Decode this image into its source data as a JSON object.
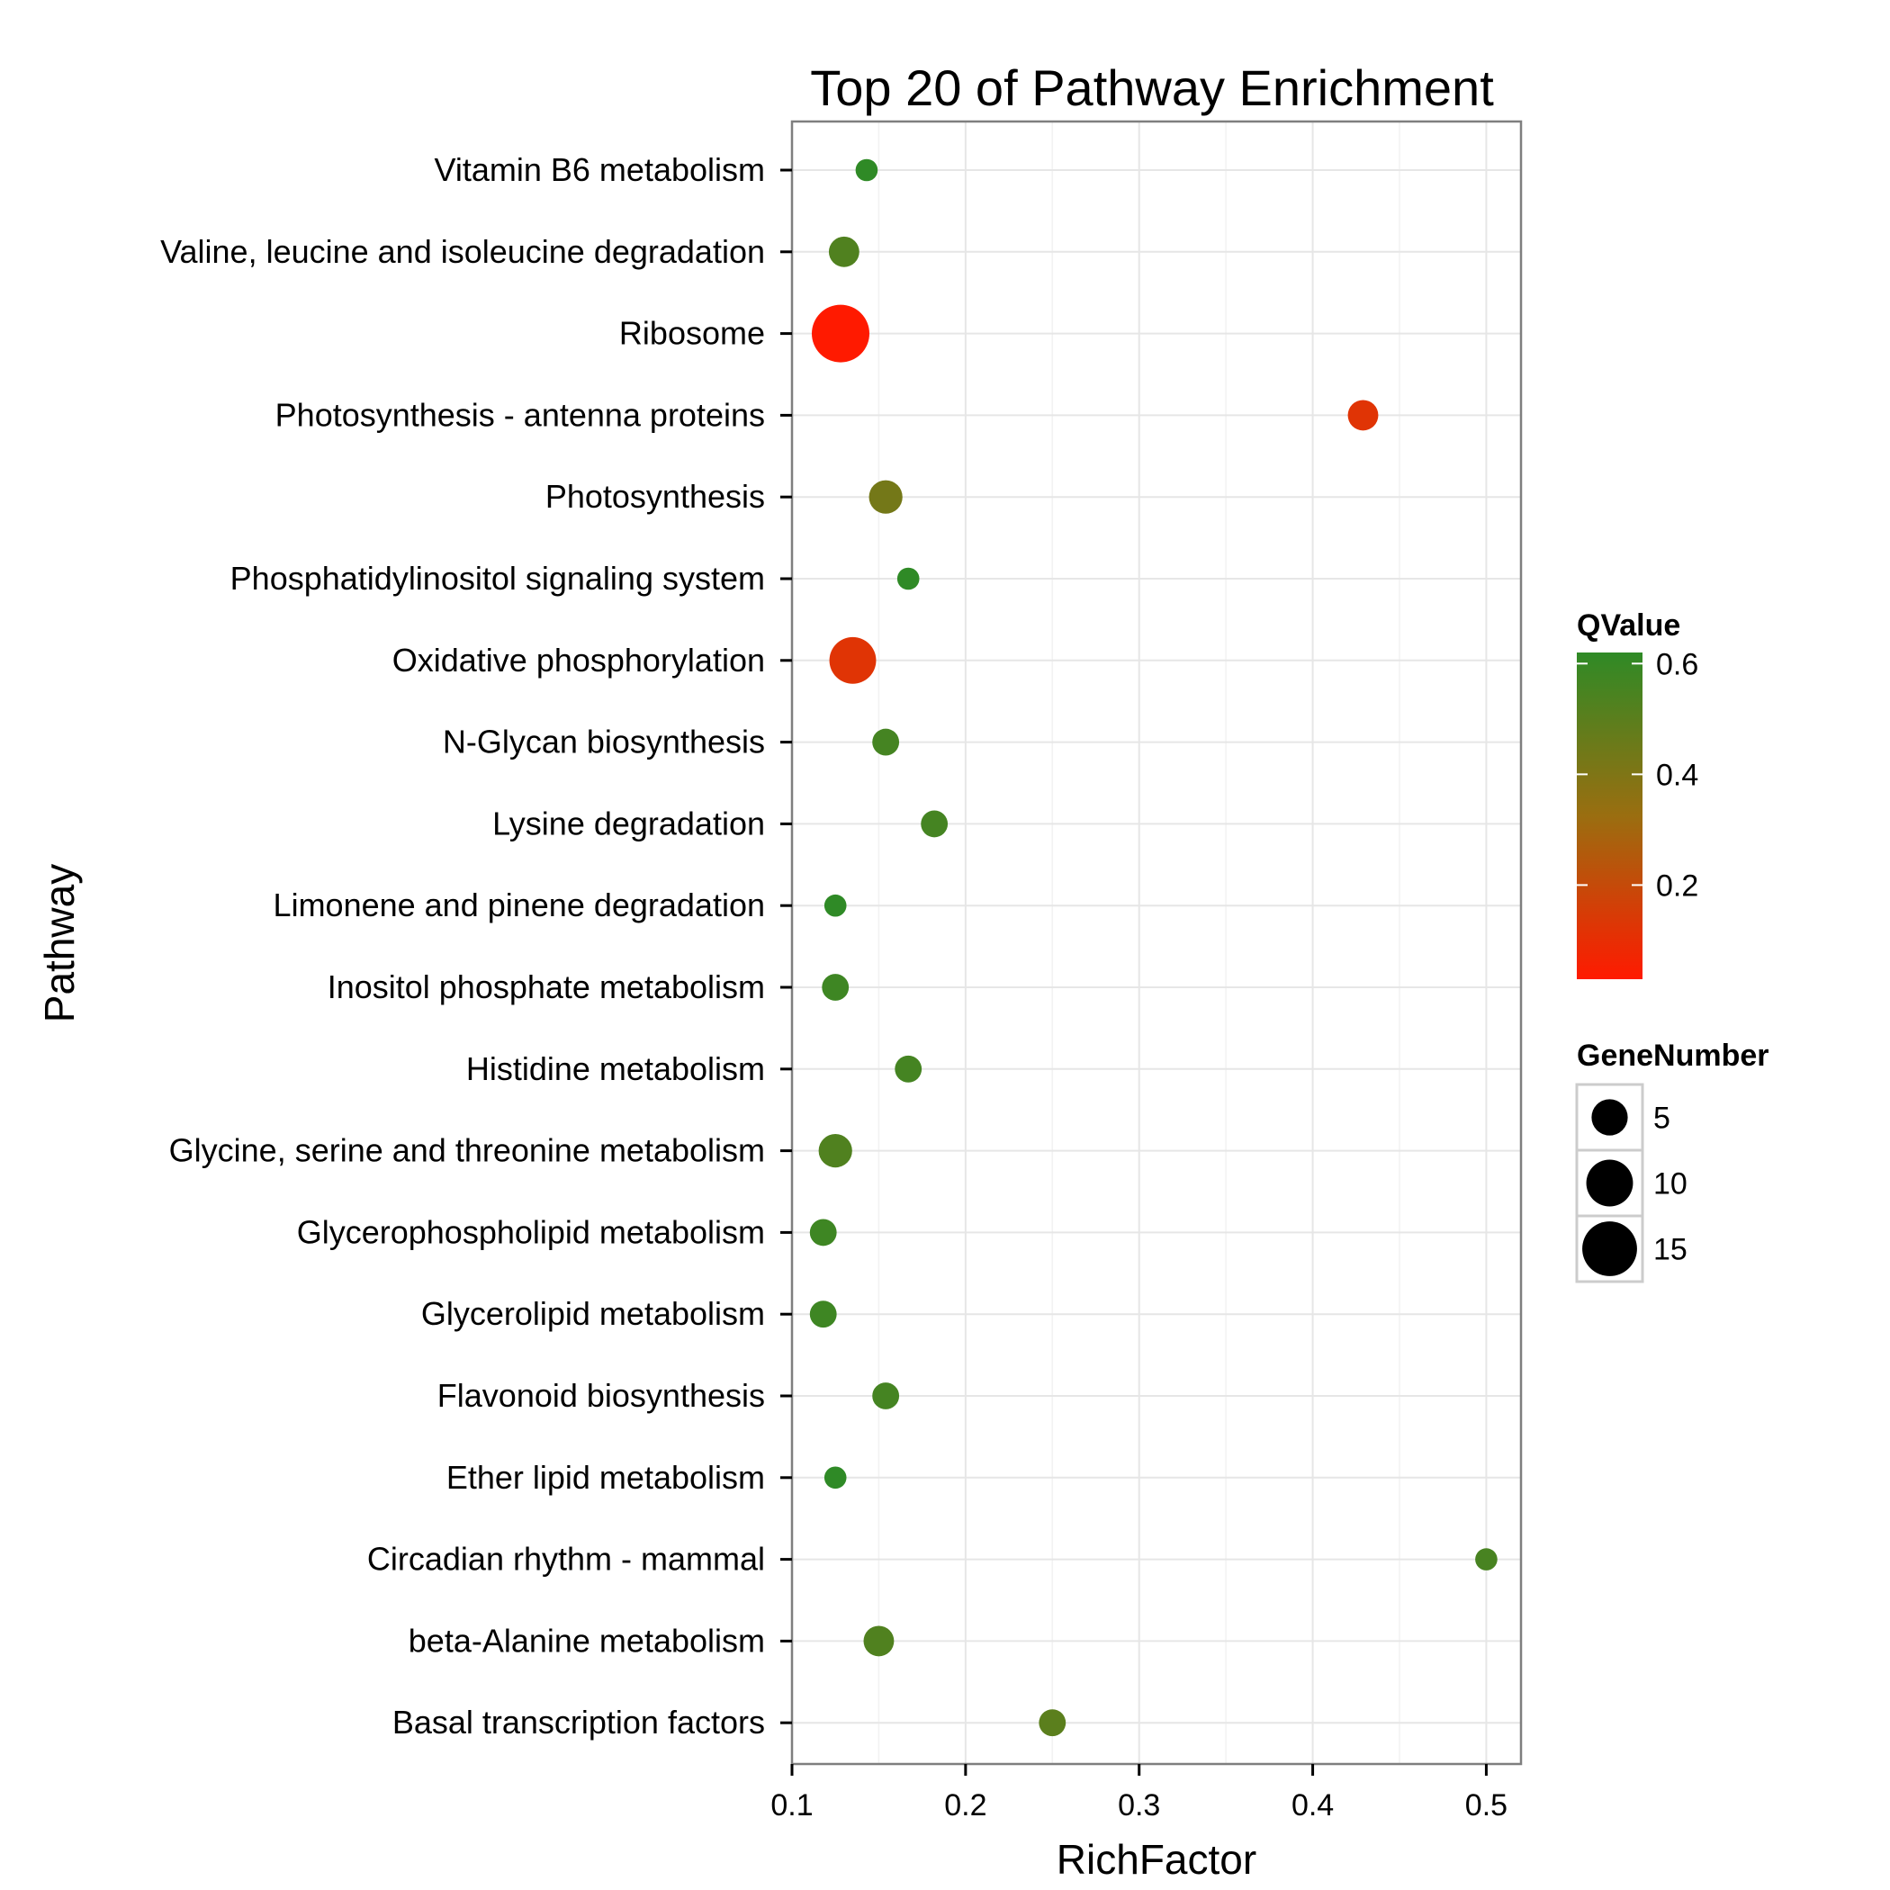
{
  "chart_data": {
    "type": "scatter",
    "title": "Top 20 of Pathway Enrichment",
    "xlabel": "RichFactor",
    "ylabel": "Pathway",
    "xlim": [
      0.1,
      0.52
    ],
    "xticks": [
      0.1,
      0.2,
      0.3,
      0.4,
      0.5
    ],
    "xtick_labels": [
      "0.1",
      "0.2",
      "0.3",
      "0.4",
      "0.5"
    ],
    "grid": true,
    "legend_position": "right",
    "points": [
      {
        "pathway": "Vitamin B6 metabolism",
        "rich_factor": 0.143,
        "gene_number": 1,
        "qvalue": 0.62
      },
      {
        "pathway": "Valine, leucine and isoleucine degradation",
        "rich_factor": 0.13,
        "gene_number": 3,
        "qvalue": 0.53
      },
      {
        "pathway": "Ribosome",
        "rich_factor": 0.128,
        "gene_number": 17,
        "qvalue": 0.03
      },
      {
        "pathway": "Photosynthesis - antenna proteins",
        "rich_factor": 0.429,
        "gene_number": 3,
        "qvalue": 0.12
      },
      {
        "pathway": "Photosynthesis",
        "rich_factor": 0.154,
        "gene_number": 4,
        "qvalue": 0.43
      },
      {
        "pathway": "Phosphatidylinositol signaling system",
        "rich_factor": 0.167,
        "gene_number": 1,
        "qvalue": 0.62
      },
      {
        "pathway": "Oxidative phosphorylation",
        "rich_factor": 0.135,
        "gene_number": 10,
        "qvalue": 0.12
      },
      {
        "pathway": "N-Glycan biosynthesis",
        "rich_factor": 0.154,
        "gene_number": 2,
        "qvalue": 0.56
      },
      {
        "pathway": "Lysine degradation",
        "rich_factor": 0.182,
        "gene_number": 2,
        "qvalue": 0.56
      },
      {
        "pathway": "Limonene and pinene degradation",
        "rich_factor": 0.125,
        "gene_number": 1,
        "qvalue": 0.62
      },
      {
        "pathway": "Inositol phosphate metabolism",
        "rich_factor": 0.125,
        "gene_number": 2,
        "qvalue": 0.58
      },
      {
        "pathway": "Histidine metabolism",
        "rich_factor": 0.167,
        "gene_number": 2,
        "qvalue": 0.56
      },
      {
        "pathway": "Glycine, serine and threonine metabolism",
        "rich_factor": 0.125,
        "gene_number": 4,
        "qvalue": 0.53
      },
      {
        "pathway": "Glycerophospholipid metabolism",
        "rich_factor": 0.118,
        "gene_number": 2,
        "qvalue": 0.58
      },
      {
        "pathway": "Glycerolipid metabolism",
        "rich_factor": 0.118,
        "gene_number": 2,
        "qvalue": 0.58
      },
      {
        "pathway": "Flavonoid biosynthesis",
        "rich_factor": 0.154,
        "gene_number": 2,
        "qvalue": 0.56
      },
      {
        "pathway": "Ether lipid metabolism",
        "rich_factor": 0.125,
        "gene_number": 1,
        "qvalue": 0.62
      },
      {
        "pathway": "Circadian rhythm - mammal",
        "rich_factor": 0.5,
        "gene_number": 1,
        "qvalue": 0.55
      },
      {
        "pathway": "beta-Alanine metabolism",
        "rich_factor": 0.15,
        "gene_number": 3,
        "qvalue": 0.53
      },
      {
        "pathway": "Basal transcription factors",
        "rich_factor": 0.25,
        "gene_number": 2,
        "qvalue": 0.5
      }
    ],
    "color_legend": {
      "title": "QValue",
      "range": [
        0.03,
        0.62
      ],
      "ticks": [
        0.2,
        0.4,
        0.6
      ],
      "tick_labels": [
        "0.2",
        "0.4",
        "0.6"
      ],
      "low_color": "#ff1a00",
      "mid_color": "#9a6e10",
      "high_color": "#2f8a26"
    },
    "size_legend": {
      "title": "GeneNumber",
      "values": [
        5,
        10,
        15
      ],
      "labels": [
        "5",
        "10",
        "15"
      ]
    }
  }
}
